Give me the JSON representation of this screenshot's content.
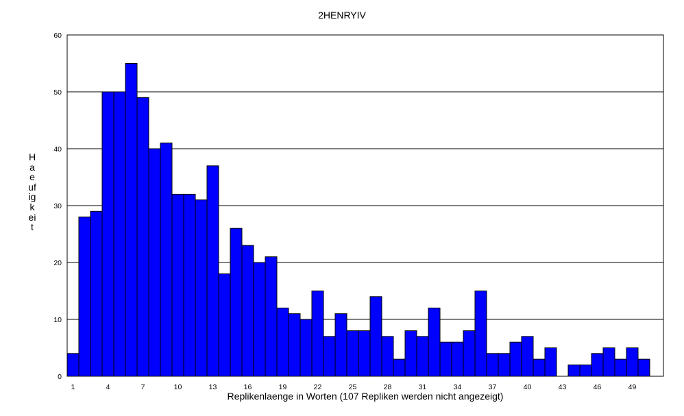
{
  "chart_data": {
    "type": "bar",
    "title": "2HENRYIV",
    "xlabel": "Replikenlaenge in Worten (107 Repliken werden nicht angezeigt)",
    "ylabel": "Haeufigkeit",
    "categories": [
      1,
      2,
      3,
      4,
      5,
      6,
      7,
      8,
      9,
      10,
      11,
      12,
      13,
      14,
      15,
      16,
      17,
      18,
      19,
      20,
      21,
      22,
      23,
      24,
      25,
      26,
      27,
      28,
      29,
      30,
      31,
      32,
      33,
      34,
      35,
      36,
      37,
      38,
      39,
      40,
      41,
      42,
      43,
      44,
      45,
      46,
      47,
      48,
      49,
      50
    ],
    "values": [
      4,
      28,
      29,
      50,
      50,
      55,
      49,
      40,
      41,
      32,
      32,
      31,
      37,
      18,
      26,
      23,
      20,
      21,
      12,
      11,
      10,
      15,
      7,
      11,
      8,
      8,
      14,
      7,
      3,
      8,
      7,
      12,
      6,
      6,
      8,
      15,
      4,
      4,
      6,
      7,
      3,
      5,
      0,
      2,
      2,
      4,
      5,
      3,
      5,
      3
    ],
    "x_tick_labels": [
      "1",
      "4",
      "7",
      "10",
      "13",
      "16",
      "19",
      "22",
      "25",
      "28",
      "31",
      "34",
      "37",
      "40",
      "43",
      "46",
      "49"
    ],
    "y_tick_labels": [
      "0",
      "10",
      "20",
      "30",
      "40",
      "50",
      "60"
    ],
    "ylim": [
      0,
      60
    ],
    "grid": true,
    "bar_color": "#0000ff"
  }
}
